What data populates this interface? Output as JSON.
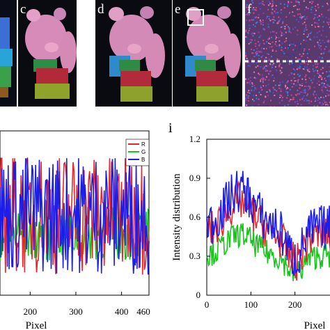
{
  "figure": {
    "panels": [
      {
        "letter": "",
        "kind": "photo",
        "note_colors": [
          "#0a0c18",
          "#2a9fd8",
          "#d23b7a",
          "#3da84a"
        ]
      },
      {
        "letter": "c",
        "kind": "photo"
      },
      {
        "letter": "d",
        "kind": "photo"
      },
      {
        "letter": "e",
        "kind": "photo"
      },
      {
        "letter": "f",
        "kind": "noise"
      }
    ],
    "letters_bottom": {
      "left": "",
      "right": "i"
    }
  },
  "chart_data": [
    {
      "type": "line",
      "xlabel": "Pixel",
      "ylabel": "",
      "xlim": [
        0,
        460
      ],
      "ylim": [
        0,
        1.2
      ],
      "x_ticks": [
        "200",
        "300",
        "400",
        "460"
      ],
      "x_tick_values": [
        200,
        300,
        400,
        460
      ],
      "legend": {
        "placement": "top-right",
        "entries": [
          "R",
          "G",
          "B"
        ]
      },
      "series": [
        {
          "name": "R",
          "color": "#e8262a"
        },
        {
          "name": "G",
          "color": "#16c51a"
        },
        {
          "name": "B",
          "color": "#1c1de6"
        }
      ]
    },
    {
      "type": "line",
      "xlabel": "Pixel",
      "ylabel": "Intensity distribution",
      "xlim": [
        0,
        300
      ],
      "ylim": [
        0,
        1.2
      ],
      "y_ticks": [
        "0",
        "0.3",
        "0.6",
        "0.9",
        "1.2"
      ],
      "y_tick_values": [
        0,
        0.3,
        0.6,
        0.9,
        1.2
      ],
      "x_ticks": [
        "0",
        "100",
        "200"
      ],
      "x_tick_values": [
        0,
        100,
        200
      ],
      "series": [
        {
          "name": "R",
          "color": "#e8262a"
        },
        {
          "name": "G",
          "color": "#16c51a"
        },
        {
          "name": "B",
          "color": "#1c1de6"
        }
      ]
    }
  ]
}
